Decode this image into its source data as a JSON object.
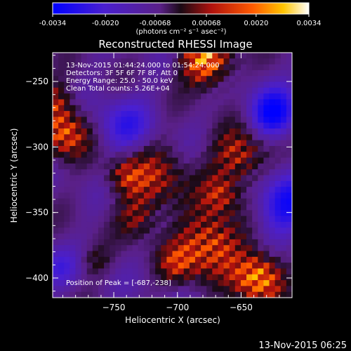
{
  "chart_data": {
    "type": "heatmap",
    "title": "Reconstructed RHESSI Image",
    "xlabel": "Heliocentric X (arcsec)",
    "ylabel": "Heliocentric Y (arcsec)",
    "xlim": [
      -798,
      -610
    ],
    "ylim": [
      -415,
      -228
    ],
    "x_ticks": [
      -750,
      -700,
      -650
    ],
    "y_ticks": [
      -250,
      -300,
      -350,
      -400
    ],
    "colorbar": {
      "range": [
        -0.0034,
        0.0034
      ],
      "ticks": [
        "-0.0034",
        "-0.0020",
        "-0.00068",
        "0.00068",
        "0.0020",
        "0.0034"
      ],
      "unit_label": "(photons cm⁻² s⁻¹ asec⁻²)"
    },
    "peak_position": [
      -687,
      -238
    ],
    "info_lines": [
      "13-Nov-2015 01:44:24.000 to 01:54:24.000",
      "Detectors: 3F 5F 6F 7F 8F, Att 0",
      "Energy Range: 25.0 - 50.0 keV",
      "Clean    Total counts: 5.26E+04"
    ],
    "peak_text": "Position of Peak = [-687,-238]",
    "footer_date": "13-Nov-2015 06:25"
  }
}
